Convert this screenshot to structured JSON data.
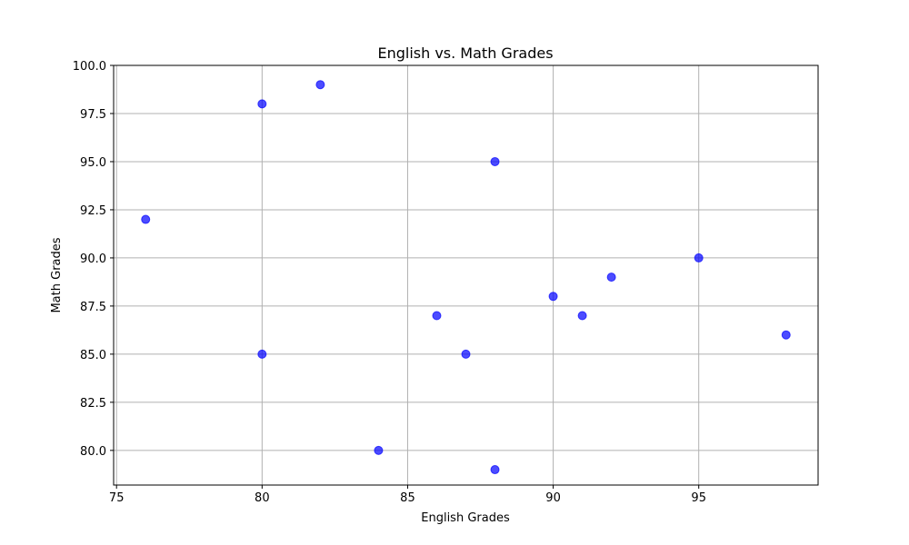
{
  "chart_data": {
    "type": "scatter",
    "title": "English vs. Math Grades",
    "xlabel": "English Grades",
    "ylabel": "Math Grades",
    "xlim": [
      74.9,
      99.1
    ],
    "ylim": [
      78.2,
      100.0
    ],
    "xticks": [
      75,
      80,
      85,
      90,
      95
    ],
    "xtick_labels": [
      "75",
      "80",
      "85",
      "90",
      "95"
    ],
    "yticks": [
      80.0,
      82.5,
      85.0,
      87.5,
      90.0,
      92.5,
      95.0,
      97.5,
      100.0
    ],
    "ytick_labels": [
      "80.0",
      "82.5",
      "85.0",
      "87.5",
      "90.0",
      "92.5",
      "95.0",
      "97.5",
      "100.0"
    ],
    "grid": true,
    "point_color": "#0000ff",
    "point_opacity": 0.7,
    "series": [
      {
        "x": [
          76,
          80,
          82,
          88,
          80,
          86,
          87,
          84,
          88,
          90,
          91,
          92,
          95,
          98
        ],
        "y": [
          92,
          98,
          99,
          95,
          85,
          87,
          85,
          80,
          79,
          88,
          87,
          89,
          90,
          86
        ]
      }
    ]
  }
}
